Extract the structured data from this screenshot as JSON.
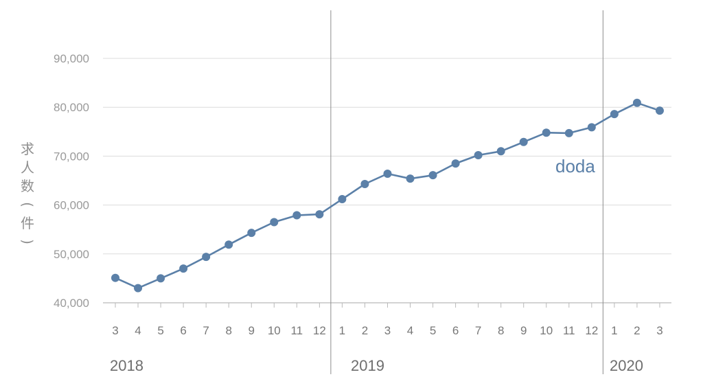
{
  "chart_data": {
    "type": "line",
    "ylabel_chars": [
      "求",
      "人",
      "数",
      "(",
      "件",
      ")"
    ],
    "y_ticks": [
      {
        "value": 40000,
        "label": "40,000"
      },
      {
        "value": 50000,
        "label": "50,000"
      },
      {
        "value": 60000,
        "label": "60,000"
      },
      {
        "value": 70000,
        "label": "70,000"
      },
      {
        "value": 80000,
        "label": "80,000"
      },
      {
        "value": 90000,
        "label": "90,000"
      }
    ],
    "ylim": [
      40000,
      90000
    ],
    "grid": true,
    "categories": [
      "3",
      "4",
      "5",
      "6",
      "7",
      "8",
      "9",
      "10",
      "11",
      "12",
      "1",
      "2",
      "3",
      "4",
      "5",
      "6",
      "7",
      "8",
      "9",
      "10",
      "11",
      "12",
      "1",
      "2",
      "3"
    ],
    "years": [
      "2018",
      "2019",
      "2020"
    ],
    "series": [
      {
        "name": "doda",
        "color": "#5b80a8",
        "values": [
          45100,
          43000,
          45000,
          47000,
          49400,
          51900,
          54300,
          56500,
          57900,
          58100,
          61200,
          64300,
          66400,
          65400,
          66100,
          68500,
          70200,
          71000,
          72900,
          74800,
          74700,
          75900,
          78600,
          80900,
          79300
        ]
      }
    ]
  }
}
